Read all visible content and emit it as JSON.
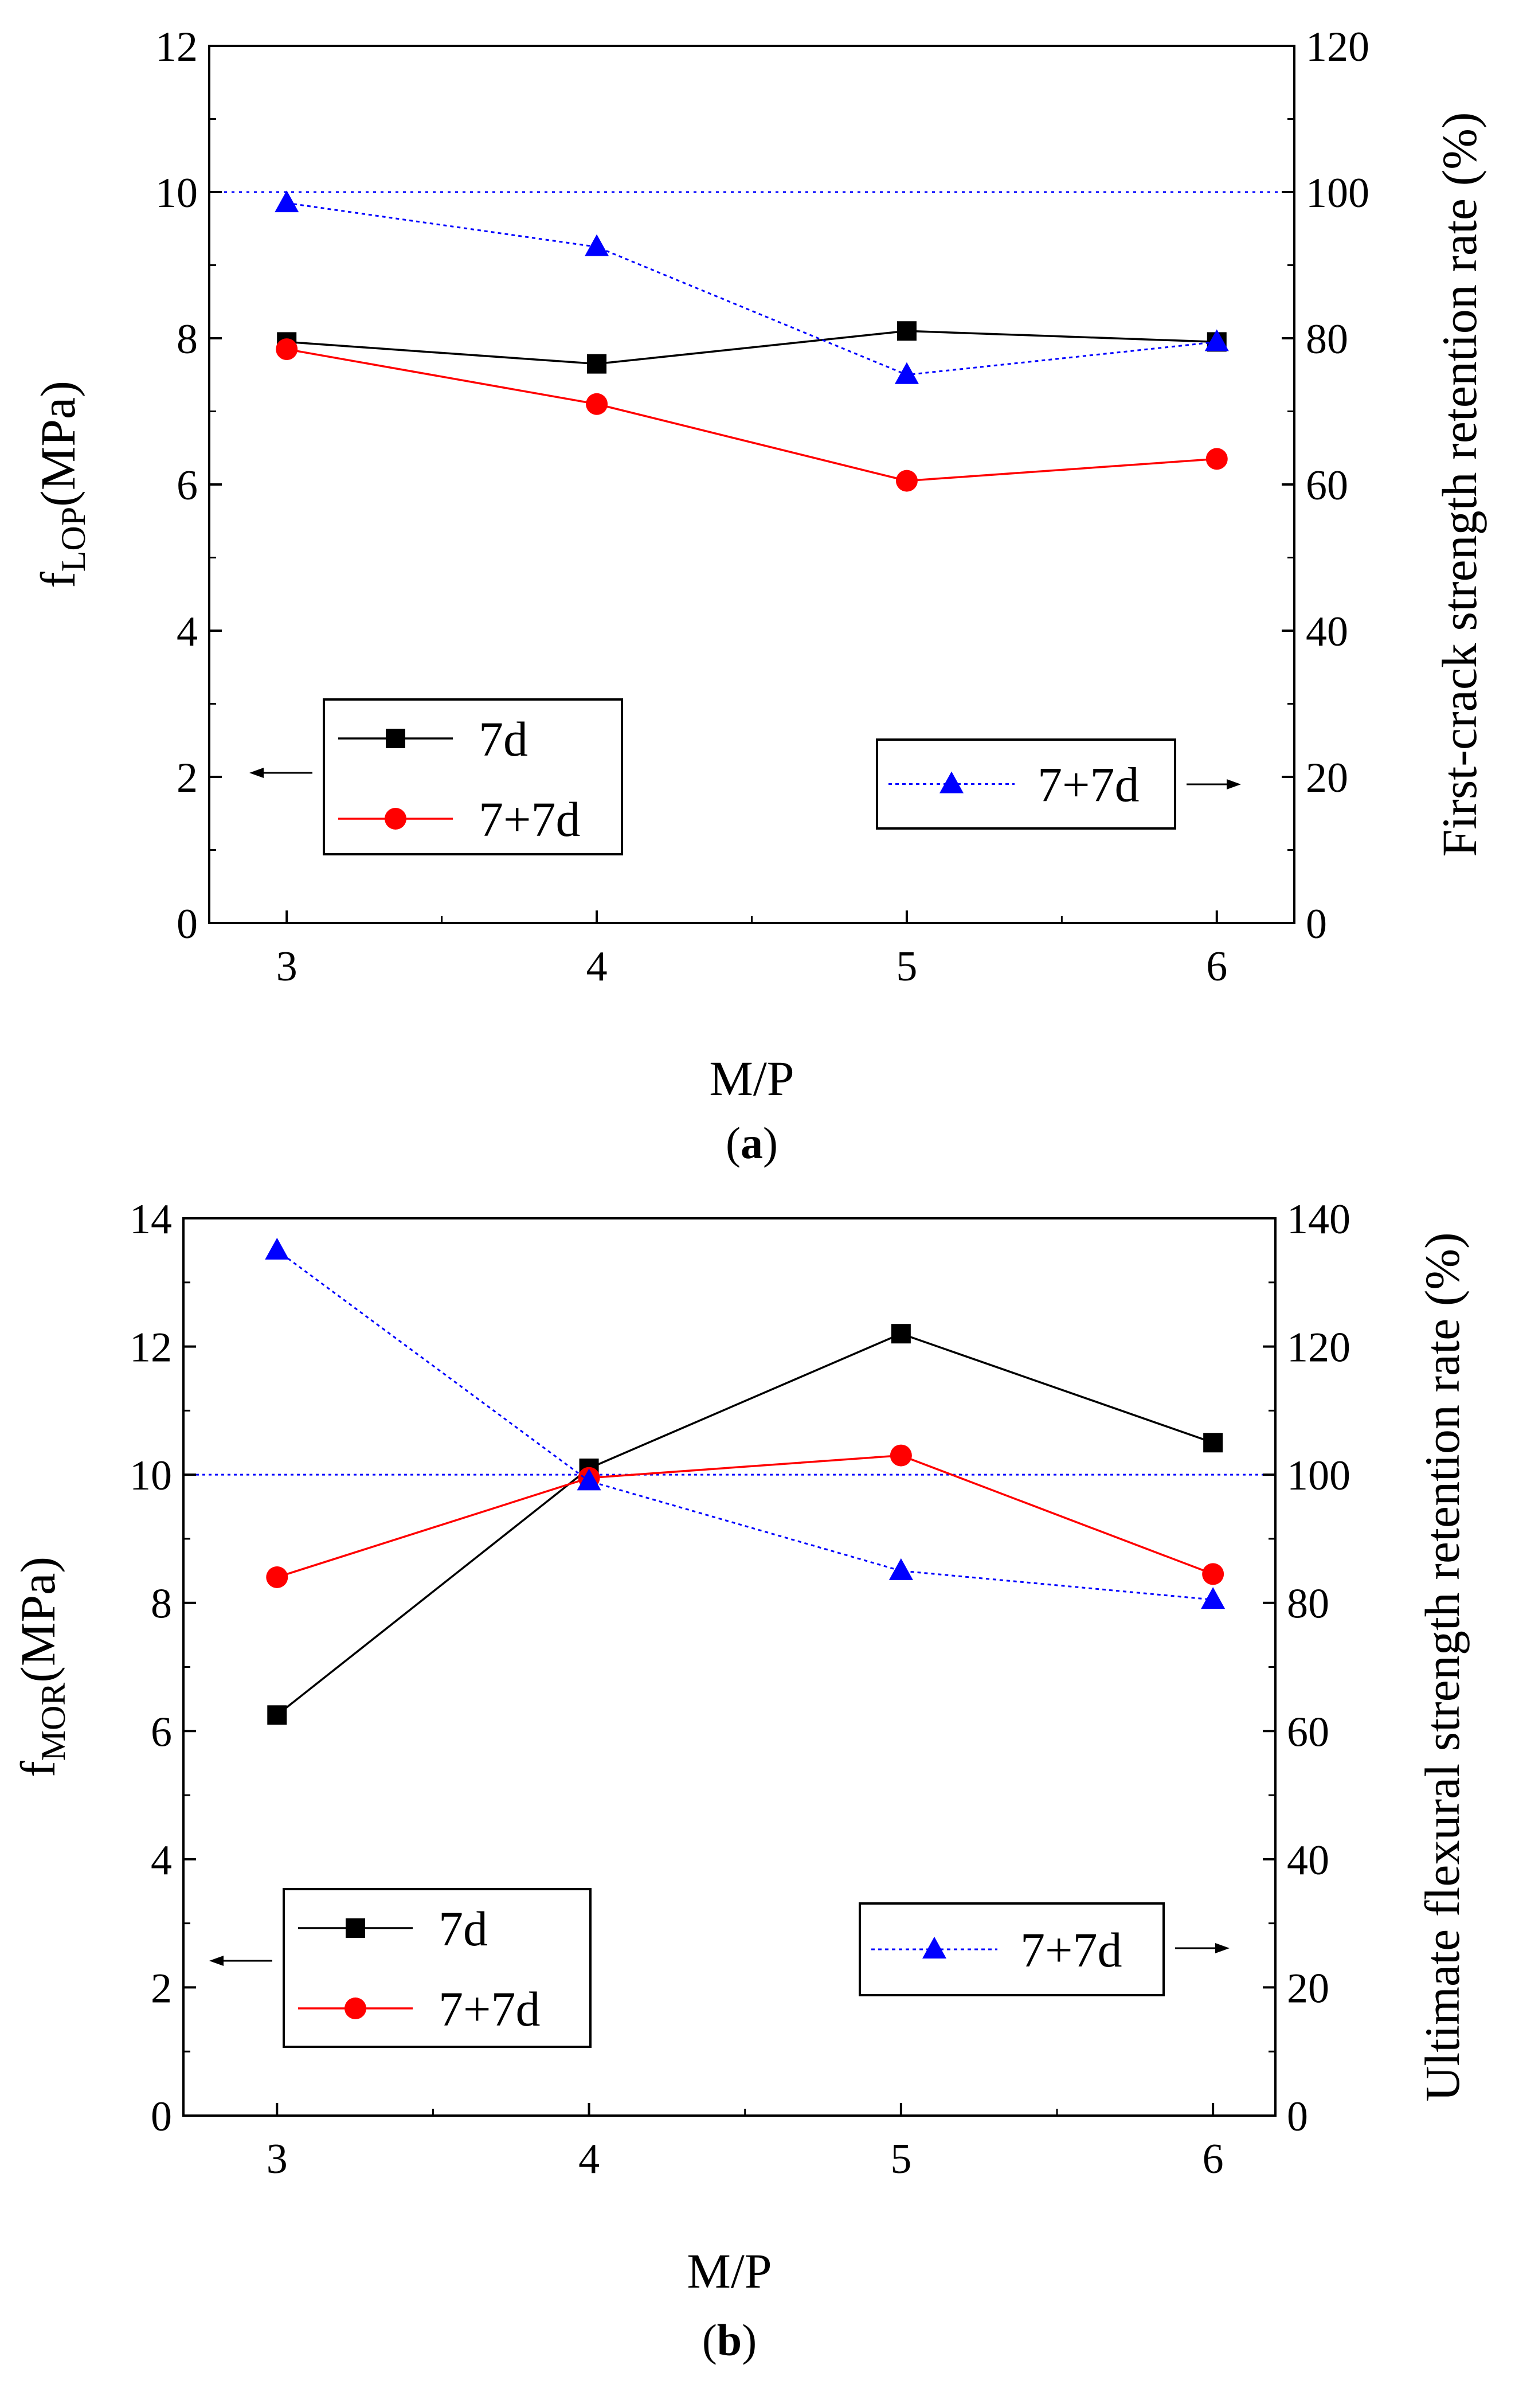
{
  "colors": {
    "series_7d": "#000000",
    "series_77d": "#ff0000",
    "series_retention": "#0000ff",
    "reference": "#0000ff"
  },
  "chart_data": [
    {
      "id": "a",
      "type": "line",
      "caption": "(a)",
      "caption_letter": "a",
      "xlabel": "M/P",
      "ylabel_left_main": "f",
      "ylabel_left_sub": "LOP",
      "ylabel_left_tail": "(MPa)",
      "ylabel_right": "First-crack strength retention rate (%)",
      "x": [
        3,
        4,
        5,
        6
      ],
      "xlim": [
        2.75,
        6.25
      ],
      "xticks": [
        "3",
        "4",
        "5",
        "6"
      ],
      "ylim_left": [
        0,
        12
      ],
      "yticks_left": [
        "0",
        "2",
        "4",
        "6",
        "8",
        "10",
        "12"
      ],
      "ylim_right": [
        0,
        120
      ],
      "yticks_right": [
        "0",
        "20",
        "40",
        "60",
        "80",
        "100",
        "120"
      ],
      "reference_line_right": 100,
      "series": [
        {
          "name": "7d",
          "axis": "left",
          "marker": "square",
          "color": "#000000",
          "values": [
            7.95,
            7.65,
            8.1,
            7.95
          ]
        },
        {
          "name": "7+7d",
          "axis": "left",
          "marker": "circle",
          "color": "#ff0000",
          "values": [
            7.85,
            7.1,
            6.05,
            6.35
          ]
        },
        {
          "name": "7+7d",
          "axis": "right",
          "marker": "triangle",
          "color": "#0000ff",
          "values": [
            98.5,
            92.5,
            75,
            79.5
          ]
        }
      ],
      "legend_left": [
        "7d",
        "7+7d"
      ],
      "legend_right": [
        "7+7d"
      ]
    },
    {
      "id": "b",
      "type": "line",
      "caption": "(b)",
      "caption_letter": "b",
      "xlabel": "M/P",
      "ylabel_left_main": "f",
      "ylabel_left_sub": "MOR",
      "ylabel_left_tail": "(MPa)",
      "ylabel_right": "Ultimate flexural strength retention rate (%)",
      "x": [
        3,
        4,
        5,
        6
      ],
      "xlim": [
        2.7,
        6.2
      ],
      "xticks": [
        "3",
        "4",
        "5",
        "6"
      ],
      "ylim_left": [
        0,
        14
      ],
      "yticks_left": [
        "0",
        "2",
        "4",
        "6",
        "8",
        "10",
        "12",
        "14"
      ],
      "ylim_right": [
        0,
        140
      ],
      "yticks_right": [
        "0",
        "20",
        "40",
        "60",
        "80",
        "100",
        "120",
        "140"
      ],
      "reference_line_right": 100,
      "series": [
        {
          "name": "7d",
          "axis": "left",
          "marker": "square",
          "color": "#000000",
          "values": [
            6.25,
            10.1,
            12.2,
            10.5
          ]
        },
        {
          "name": "7+7d",
          "axis": "left",
          "marker": "circle",
          "color": "#ff0000",
          "values": [
            8.4,
            9.95,
            10.3,
            8.45
          ]
        },
        {
          "name": "7+7d",
          "axis": "right",
          "marker": "triangle",
          "color": "#0000ff",
          "values": [
            135,
            99,
            85,
            80.5
          ]
        }
      ],
      "legend_left": [
        "7d",
        "7+7d"
      ],
      "legend_right": [
        "7+7d"
      ]
    }
  ]
}
